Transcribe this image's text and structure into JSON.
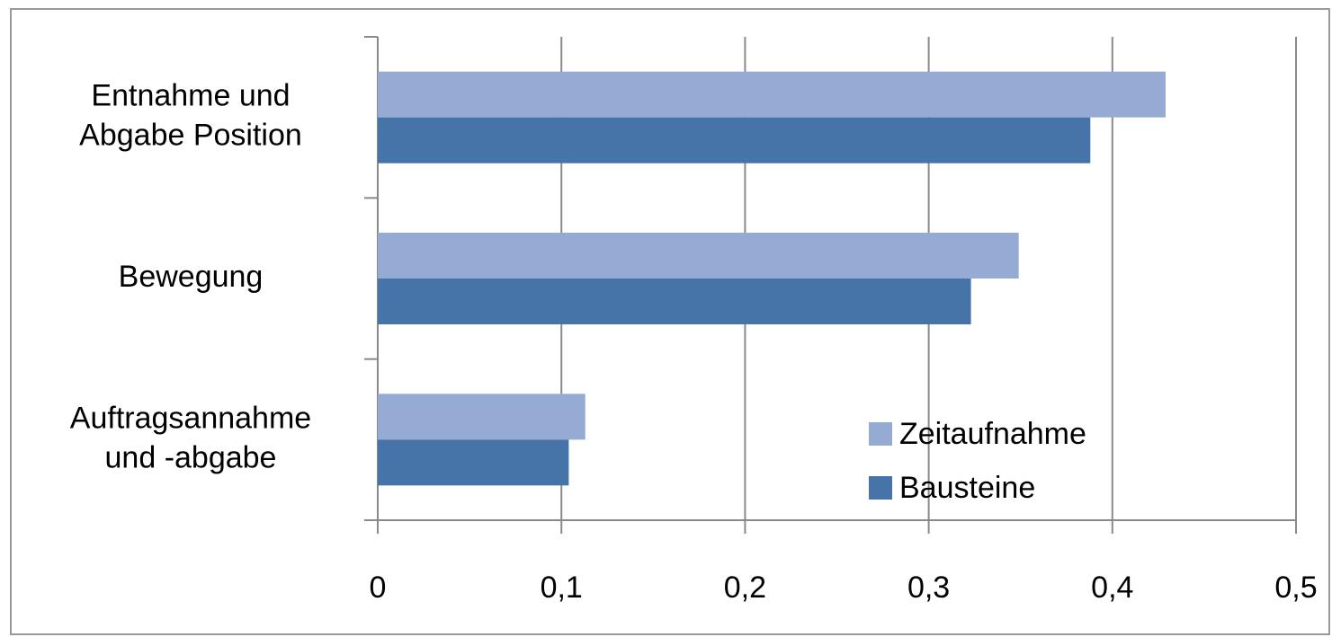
{
  "chart_data": {
    "type": "barh",
    "categories": [
      "Entnahme und\nAbgabe Position",
      "Bewegung",
      "Auftragsannahme\nund -abgabe"
    ],
    "series": [
      {
        "name": "Zeitaufnahme",
        "color": "#95abd4",
        "values": [
          0.429,
          0.349,
          0.113
        ]
      },
      {
        "name": "Bausteine",
        "color": "#4674a8",
        "values": [
          0.388,
          0.323,
          0.104
        ]
      }
    ],
    "xlim": [
      0,
      0.5
    ],
    "xticks": [
      0,
      {
        "value": 0.1,
        "label": "0,1"
      },
      {
        "value": 0.2,
        "label": "0,2"
      },
      {
        "value": 0.3,
        "label": "0,3"
      },
      {
        "value": 0.4,
        "label": "0,4"
      },
      {
        "value": 0.5,
        "label": "0,5"
      }
    ],
    "grid": true,
    "legend": "lower right"
  }
}
